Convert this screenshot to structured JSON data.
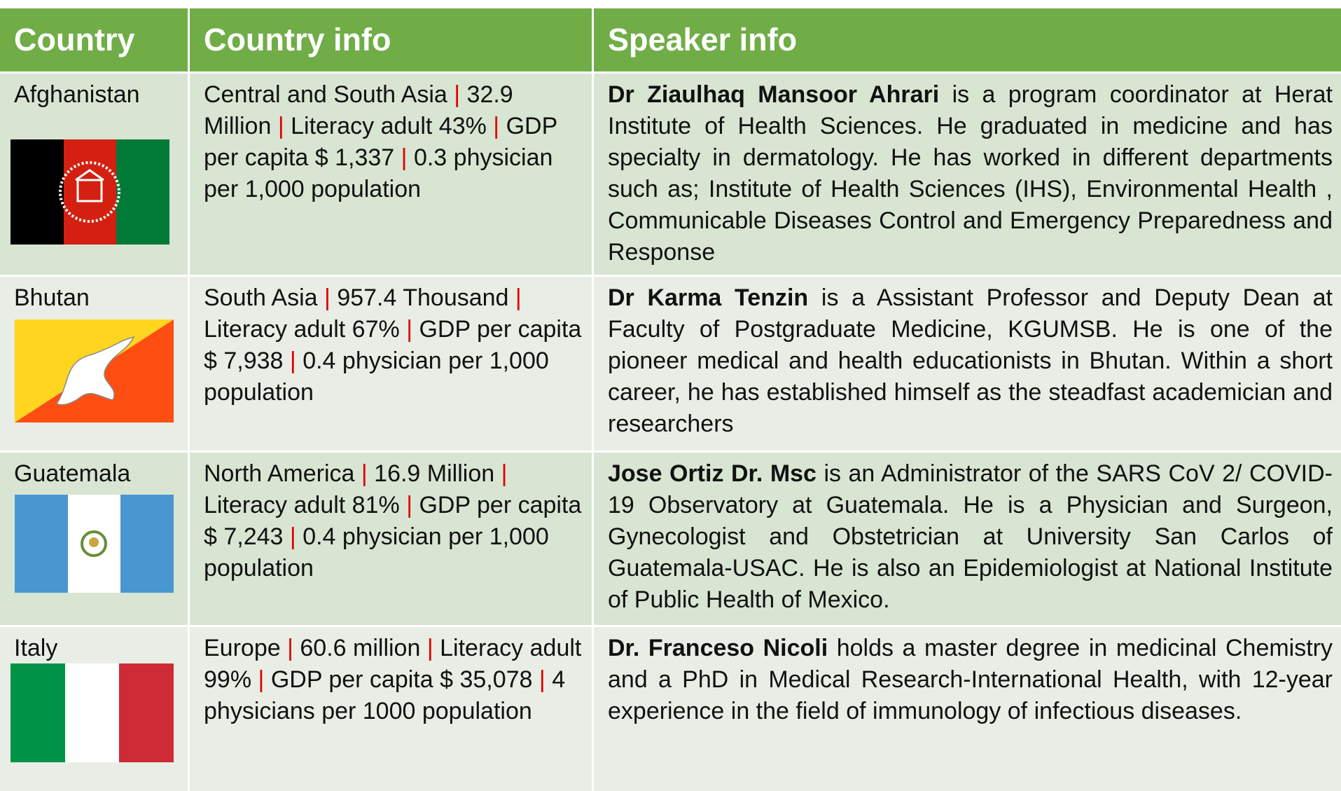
{
  "header": {
    "country": "Country",
    "country_info": "Country info",
    "speaker_info": "Speaker info"
  },
  "separator": "|",
  "rows": [
    {
      "country": "Afghanistan",
      "info": [
        "Central and South Asia",
        "32.9 Million",
        "Literacy adult 43%",
        "GDP per capita $ 1,337",
        "0.3 physician per 1,000 population"
      ],
      "speaker_name": "Dr Ziaulhaq Mansoor Ahrari",
      "speaker_text": "is a program coordinator at Herat Institute of Health Sciences. He graduated in medicine and has specialty in dermatology. He has worked in different departments such as; Institute of Health Sciences (IHS), Environmental Health , Communicable Diseases Control and Emergency Preparedness and Response"
    },
    {
      "country": "Bhutan",
      "info": [
        "South Asia",
        "957.4 Thousand",
        "Literacy adult 67%",
        "GDP per capita $ 7,938",
        "0.4 physician per 1,000 population"
      ],
      "speaker_name": "Dr Karma Tenzin",
      "speaker_text": "is a Assistant Professor and Deputy Dean at Faculty of Postgraduate Medicine, KGUMSB. He is one of the pioneer medical and health educationists in Bhutan. Within a short career, he has established himself as the steadfast academician and researchers"
    },
    {
      "country": "Guatemala",
      "info": [
        "North America",
        "16.9 Million",
        "Literacy adult 81%",
        "GDP per capita $ 7,243",
        "0.4 physician per 1,000 population"
      ],
      "speaker_name": "Jose Ortiz Dr. Msc",
      "speaker_text": "is an Administrator of the SARS CoV 2/ COVID-19 Observatory at Guatemala. He is a Physician and Surgeon, Gynecologist and Obstetrician at University San Carlos of Guatemala-USAC. He is also an Epidemiologist at National Institute of Public Health of Mexico."
    },
    {
      "country": "Italy",
      "info": [
        "Europe",
        "60.6 million",
        "Literacy adult 99%",
        "GDP per capita $ 35,078",
        "4 physicians per 1000 population"
      ],
      "speaker_name": "Dr. Franceso Nicoli",
      "speaker_text": "holds a master degree in medicinal Chemistry and a PhD in Medical Research-International Health, with 12-year experience in the field of immunology of infectious diseases."
    }
  ]
}
